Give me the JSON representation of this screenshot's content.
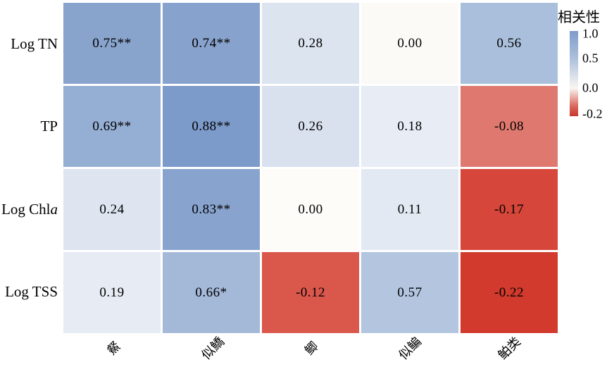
{
  "chart_data": {
    "type": "heatmap",
    "title": "",
    "x_axis": {
      "categories": [
        "䱗",
        "似鱎",
        "鲫",
        "似鳊",
        "鲌类"
      ],
      "tick_rotation_deg": 45
    },
    "y_axis": {
      "categories": [
        {
          "label": "Log TN",
          "italic_suffix": ""
        },
        {
          "label": "TP",
          "italic_suffix": ""
        },
        {
          "label": "Log Chl",
          "italic_suffix": "a"
        },
        {
          "label": "Log TSS",
          "italic_suffix": ""
        }
      ]
    },
    "cells": [
      [
        {
          "label": "0.75**",
          "value": 0.75,
          "color": "#88a3cc"
        },
        {
          "label": "0.74**",
          "value": 0.74,
          "color": "#87a2cc"
        },
        {
          "label": "0.28",
          "value": 0.28,
          "color": "#dce4f0"
        },
        {
          "label": "0.00",
          "value": 0.0,
          "color": "#fbfaf6"
        },
        {
          "label": "0.56",
          "value": 0.56,
          "color": "#aabfdc"
        }
      ],
      [
        {
          "label": "0.69**",
          "value": 0.69,
          "color": "#95aed3"
        },
        {
          "label": "0.88**",
          "value": 0.88,
          "color": "#7c9bca"
        },
        {
          "label": "0.26",
          "value": 0.26,
          "color": "#d9e1ee"
        },
        {
          "label": "0.18",
          "value": 0.18,
          "color": "#e7ecf5"
        },
        {
          "label": "-0.08",
          "value": -0.08,
          "color": "#df7970"
        }
      ],
      [
        {
          "label": "0.24",
          "value": 0.24,
          "color": "#dee5f1"
        },
        {
          "label": "0.83**",
          "value": 0.83,
          "color": "#88a4ce"
        },
        {
          "label": "0.00",
          "value": 0.0,
          "color": "#fdfcf8"
        },
        {
          "label": "0.11",
          "value": 0.11,
          "color": "#e3e9f2"
        },
        {
          "label": "-0.17",
          "value": -0.17,
          "color": "#d6463a"
        }
      ],
      [
        {
          "label": "0.19",
          "value": 0.19,
          "color": "#e6ebf4"
        },
        {
          "label": "0.66*",
          "value": 0.66,
          "color": "#a4b8d8"
        },
        {
          "label": "-0.12",
          "value": -0.12,
          "color": "#da574c"
        },
        {
          "label": "0.57",
          "value": 0.57,
          "color": "#b3c5df"
        },
        {
          "label": "-0.22",
          "value": -0.22,
          "color": "#d23a2d"
        }
      ]
    ],
    "colorbar": {
      "title": "相关性",
      "max_tick": 1.0,
      "min_tick": -0.2,
      "ticks": [
        {
          "label": "1.0",
          "pos": 0.03
        },
        {
          "label": "0.5",
          "pos": 0.32
        },
        {
          "label": "0.0",
          "pos": 0.67
        },
        {
          "label": "-0.2",
          "pos": 0.975
        }
      ],
      "gradient": [
        {
          "color": "#7e9bc9",
          "pos": 0.0
        },
        {
          "color": "#acc0dc",
          "pos": 0.32
        },
        {
          "color": "#f8f6f3",
          "pos": 0.67
        },
        {
          "color": "#dc685e",
          "pos": 0.88
        },
        {
          "color": "#c5372d",
          "pos": 1.0
        }
      ]
    }
  }
}
